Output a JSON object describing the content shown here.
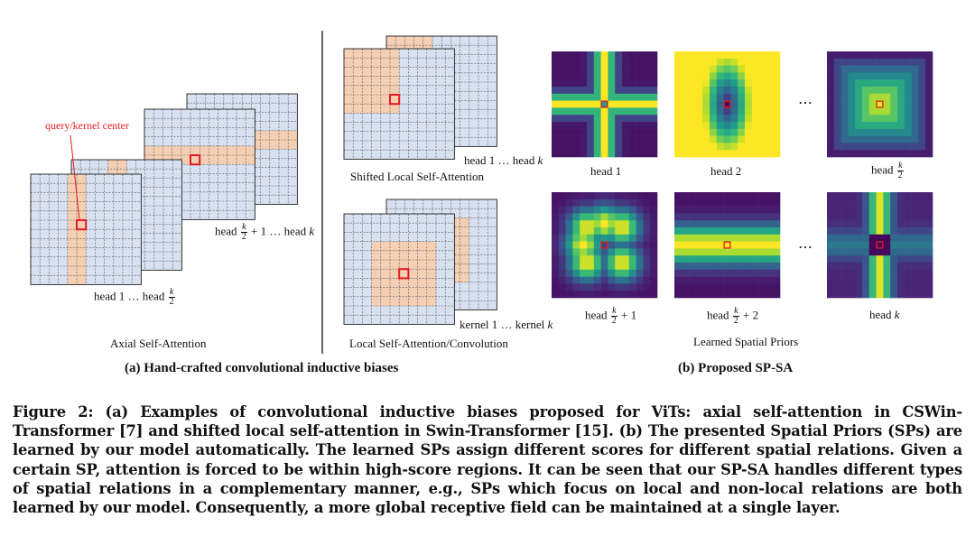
{
  "annotations": {
    "query_center": "query/kernel center"
  },
  "labels": {
    "axial_front": "head 1 … head",
    "axial_back_pre": "head",
    "axial_back_post": "+ 1 … head",
    "axial_title": "Axial Self-Attention",
    "shifted_heads": "head 1 … head",
    "shifted_title": "Shifted Local Self-Attention",
    "local_kernels": "kernel 1 … kernel",
    "local_title": "Local Self-Attention/Convolution",
    "head1": "head 1",
    "head2": "head 2",
    "head_k2": "head",
    "head_k2p1_pre": "head",
    "head_k2p1_post": "+ 1",
    "head_k2p2_pre": "head",
    "head_k2p2_post": "+ 2",
    "head_k": "head",
    "dots": "⋯",
    "learned_title": "Learned Spatial Priors",
    "k": "k",
    "two": "2"
  },
  "subcaptions": {
    "a": "(a) Hand-crafted convolutional inductive biases",
    "b": "(b) Proposed SP-SA"
  },
  "caption": "Figure 2: (a) Examples of convolutional inductive biases proposed for ViTs: axial self-attention in CSWin-Transformer [7] and shifted local self-attention in Swin-Transformer [15]. (b) The presented Spatial Priors (SPs) are learned by our model automatically. The learned SPs assign different scores for different spatial relations. Given a certain SP, attention is forced to be within high-score regions. It can be seen that our SP-SA handles different types of spatial relations in a complementary manner, e.g., SPs which focus on local and non-local relations are both learned by our model. Consequently, a more global receptive field can be maintained at a single layer.",
  "colors": {
    "blue_cell": "#d7e1f0",
    "orange_cell": "#f5cfb3",
    "grid_line": "#555555",
    "query_box": "#e8191f",
    "separator": "#333333",
    "viridis_low": "#440154",
    "viridis_high": "#fde725"
  }
}
